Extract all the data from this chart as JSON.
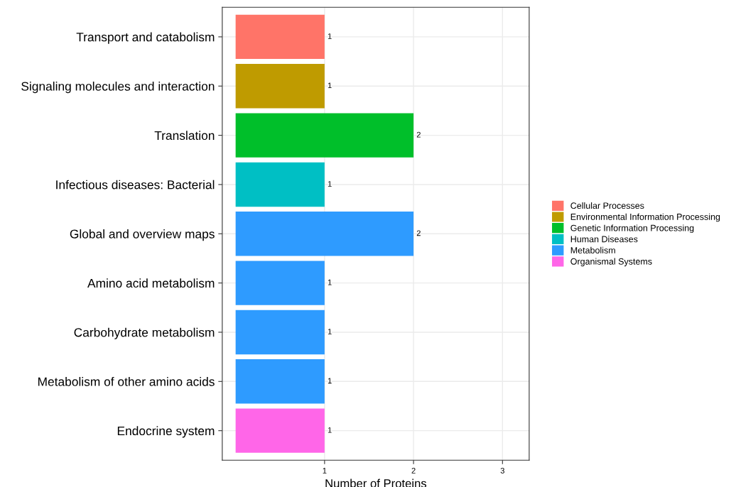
{
  "chart_data": {
    "type": "bar",
    "orientation": "horizontal",
    "xlabel": "Number of Proteins",
    "categories": [
      "Transport and catabolism",
      "Signaling molecules and interaction",
      "Translation",
      "Infectious diseases: Bacterial",
      "Global and overview maps",
      "Amino acid metabolism",
      "Carbohydrate metabolism",
      "Metabolism of other amino acids",
      "Endocrine system"
    ],
    "series": [
      {
        "name": "Cellular Processes",
        "color": "#ff7468",
        "values": [
          1,
          null,
          null,
          null,
          null,
          null,
          null,
          null,
          null
        ]
      },
      {
        "name": "Environmental Information Processing",
        "color": "#bf9b00",
        "values": [
          null,
          1,
          null,
          null,
          null,
          null,
          null,
          null,
          null
        ]
      },
      {
        "name": "Genetic Information Processing",
        "color": "#00bf2a",
        "values": [
          null,
          null,
          2,
          null,
          null,
          null,
          null,
          null,
          null
        ]
      },
      {
        "name": "Human Diseases",
        "color": "#00bfc4",
        "values": [
          null,
          null,
          null,
          1,
          null,
          null,
          null,
          null,
          null
        ]
      },
      {
        "name": "Metabolism",
        "color": "#2e9bff",
        "values": [
          null,
          null,
          null,
          null,
          2,
          1,
          1,
          1,
          null
        ]
      },
      {
        "name": "Organismal Systems",
        "color": "#ff66e8",
        "values": [
          null,
          null,
          null,
          null,
          null,
          null,
          null,
          null,
          1
        ]
      }
    ],
    "xlim": [
      -0.15,
      3.3
    ],
    "xticks": [
      1,
      2,
      3
    ],
    "grid": true,
    "legend": "right",
    "data_labels": true
  }
}
